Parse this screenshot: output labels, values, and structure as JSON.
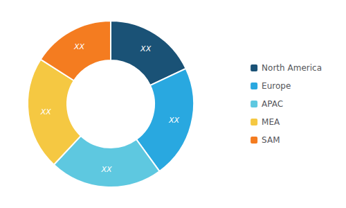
{
  "chart_data": {
    "type": "donut",
    "categories": [
      "North America",
      "Europe",
      "APAC",
      "MEA",
      "SAM"
    ],
    "values": [
      18,
      22,
      22,
      22,
      16
    ],
    "colors": [
      "#1a5276",
      "#29a8e0",
      "#5ec8e0",
      "#f5c842",
      "#f47c20"
    ],
    "data_labels": true,
    "value_labels": [
      "XX",
      "XX",
      "XX",
      "XX",
      "XX"
    ],
    "legend": "right"
  }
}
